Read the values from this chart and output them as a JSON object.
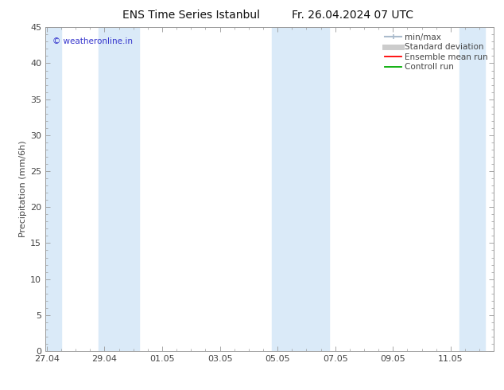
{
  "title_left": "ENS Time Series Istanbul",
  "title_right": "Fr. 26.04.2024 07 UTC",
  "ylabel": "Precipitation (mm/6h)",
  "ylim": [
    0,
    45
  ],
  "yticks": [
    0,
    5,
    10,
    15,
    20,
    25,
    30,
    35,
    40,
    45
  ],
  "xtick_labels": [
    "27.04",
    "29.04",
    "01.05",
    "03.05",
    "05.05",
    "07.05",
    "09.05",
    "11.05"
  ],
  "xtick_positions": [
    0,
    2,
    4,
    6,
    8,
    10,
    12,
    14
  ],
  "watermark": "© weatheronline.in",
  "watermark_color": "#3333cc",
  "background_color": "#ffffff",
  "plot_bg_color": "#ffffff",
  "shade_color": "#daeaf8",
  "shade_bands": [
    [
      -0.05,
      0.5
    ],
    [
      1.8,
      3.2
    ],
    [
      7.8,
      9.8
    ],
    [
      14.3,
      15.2
    ]
  ],
  "x_min": -0.05,
  "x_max": 15.3,
  "num_days": 15.35,
  "border_color": "#999999",
  "tick_color": "#444444",
  "grid_color": "#dddddd",
  "title_fontsize": 10,
  "axis_label_fontsize": 8,
  "tick_fontsize": 8,
  "legend_fontsize": 7.5,
  "minmax_color": "#aabbcc",
  "std_color": "#cccccc",
  "ens_color": "#ff0000",
  "ctrl_color": "#00aa00"
}
